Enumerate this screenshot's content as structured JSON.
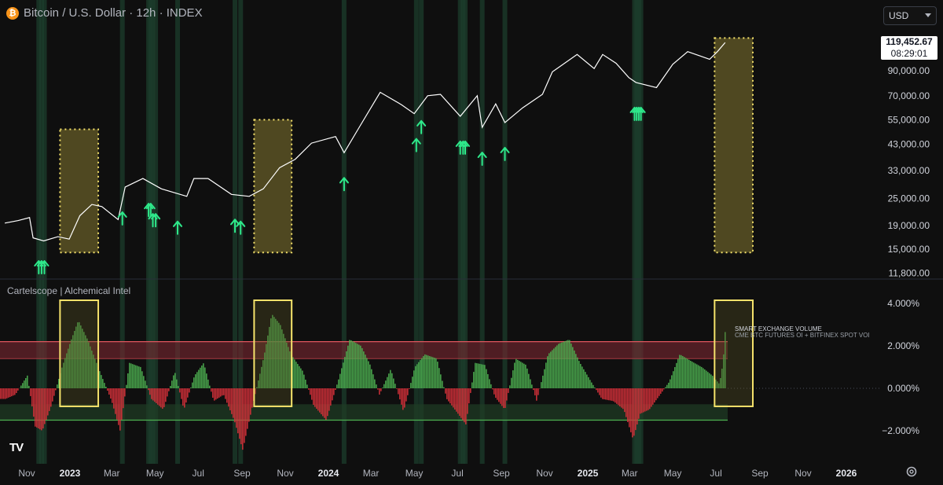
{
  "header": {
    "symbol_icon": "bitcoin-icon",
    "title": "Bitcoin / U.S. Dollar · 12h · INDEX"
  },
  "currency_button": {
    "label": "USD",
    "icon": "chevron-down-icon"
  },
  "price_badge": {
    "price": "119,452.67",
    "countdown": "08:29:01"
  },
  "indicator": {
    "title": "Cartelscope | Alchemical Intel",
    "legend_line1": "SMART EXCHANGE VOLUME",
    "legend_line2": "CME BTC FUTURES OI + BITFINEX SPOT VOI"
  },
  "colors": {
    "background": "#0f0f0f",
    "price_line": "#ffffff",
    "arrow": "#2ee88a",
    "band_green": "#1c3d2c",
    "highlight_fill": "#5a5224",
    "highlight_border": "#f5e26b",
    "osc_positive": "#4caf50",
    "osc_negative": "#d7313a",
    "zone_red": "#7a2730",
    "zone_green": "#1f3d25"
  },
  "footer": {
    "logo": "TV",
    "settings_icon": "gear-icon"
  },
  "chart_data": [
    {
      "type": "line",
      "title": "Bitcoin / U.S. Dollar · 12h · INDEX",
      "scale": "log",
      "y_ticks": [
        "90,000.00",
        "70,000.00",
        "55,000.00",
        "43,000.00",
        "33,000.00",
        "25,000.00",
        "19,000.00",
        "15,000.00",
        "11,800.00"
      ],
      "y_tick_values": [
        90000,
        70000,
        55000,
        43000,
        33000,
        25000,
        19000,
        15000,
        11800
      ],
      "x_ticks": [
        "Nov",
        "2023",
        "Mar",
        "May",
        "Jul",
        "Sep",
        "Nov",
        "2024",
        "Mar",
        "May",
        "Jul",
        "Sep",
        "Nov",
        "2025",
        "Mar",
        "May",
        "Jul",
        "Sep",
        "Nov",
        "2026"
      ],
      "x_tick_dates": [
        "2022-11-01",
        "2023-01-01",
        "2023-03-01",
        "2023-05-01",
        "2023-07-01",
        "2023-09-01",
        "2023-11-01",
        "2024-01-01",
        "2024-03-01",
        "2024-05-01",
        "2024-07-01",
        "2024-09-01",
        "2024-11-01",
        "2025-01-01",
        "2025-03-01",
        "2025-05-01",
        "2025-07-01",
        "2025-09-01",
        "2025-11-01",
        "2026-01-01"
      ],
      "series": [
        {
          "x": [
            "2022-10-01",
            "2022-10-20",
            "2022-11-05",
            "2022-11-10",
            "2022-11-25",
            "2022-12-15",
            "2022-12-31",
            "2023-01-15",
            "2023-02-01",
            "2023-02-15",
            "2023-03-10",
            "2023-03-20",
            "2023-04-14",
            "2023-05-10",
            "2023-06-15",
            "2023-06-25",
            "2023-07-15",
            "2023-08-17",
            "2023-09-11",
            "2023-10-01",
            "2023-10-24",
            "2023-11-15",
            "2023-12-08",
            "2024-01-11",
            "2024-01-23",
            "2024-02-15",
            "2024-03-14",
            "2024-04-13",
            "2024-05-01",
            "2024-05-20",
            "2024-06-07",
            "2024-07-05",
            "2024-07-29",
            "2024-08-05",
            "2024-08-24",
            "2024-09-06",
            "2024-10-01",
            "2024-10-29",
            "2024-11-12",
            "2024-12-17",
            "2025-01-10",
            "2025-01-22",
            "2025-02-10",
            "2025-02-28",
            "2025-03-10",
            "2025-04-08",
            "2025-05-01",
            "2025-05-22",
            "2025-06-22",
            "2025-07-03",
            "2025-07-14"
          ],
          "y": [
            19500,
            20000,
            20600,
            16800,
            16300,
            17000,
            16600,
            21000,
            23500,
            23000,
            20200,
            28000,
            30500,
            27500,
            25500,
            30500,
            30500,
            26000,
            25500,
            27500,
            34000,
            37000,
            43500,
            46500,
            39500,
            52000,
            72500,
            64000,
            58500,
            70000,
            71000,
            57000,
            70000,
            51000,
            64500,
            53500,
            62000,
            71000,
            89000,
            106000,
            92000,
            106000,
            97000,
            84000,
            80000,
            76000,
            96000,
            109000,
            101000,
            109000,
            119452
          ]
        }
      ],
      "signal_dates": [
        "2022-11-18",
        "2022-11-22",
        "2022-11-26",
        "2023-03-16",
        "2023-04-22",
        "2023-04-25",
        "2023-04-28",
        "2023-05-02",
        "2023-06-02",
        "2023-08-22",
        "2023-08-30",
        "2024-01-23",
        "2024-05-04",
        "2024-05-11",
        "2024-07-05",
        "2024-07-09",
        "2024-07-12",
        "2024-08-05",
        "2024-09-06",
        "2025-03-08",
        "2025-03-11",
        "2025-03-14",
        "2025-03-17"
      ],
      "accumulation_zones": [
        {
          "start": "2022-12-18",
          "end": "2023-02-10",
          "low": 14500,
          "high": 50000
        },
        {
          "start": "2023-09-18",
          "end": "2023-11-10",
          "low": 14500,
          "high": 55000
        },
        {
          "start": "2025-06-29",
          "end": "2025-08-22",
          "low": 14500,
          "high": 125000
        }
      ],
      "grid": false
    },
    {
      "type": "area",
      "title": "Cartelscope | Alchemical Intel",
      "legend": [
        "SMART EXCHANGE VOLUME",
        "CME BTC FUTURES OI + BITFINEX SPOT VOI"
      ],
      "y_ticks": [
        "4.000%",
        "2.000%",
        "0.000%",
        "−2.000%"
      ],
      "ylim": [
        -2.6,
        4.4
      ],
      "upper_band": [
        1.4,
        2.2
      ],
      "lower_band": [
        -1.5,
        -0.75
      ],
      "series": [
        {
          "name": "SMART EXCHANGE VOLUME",
          "x": [
            "2022-10-01",
            "2022-10-15",
            "2022-11-01",
            "2022-11-12",
            "2022-11-22",
            "2022-12-05",
            "2022-12-20",
            "2023-01-01",
            "2023-01-12",
            "2023-01-25",
            "2023-02-10",
            "2023-02-28",
            "2023-03-12",
            "2023-03-25",
            "2023-04-10",
            "2023-04-25",
            "2023-05-12",
            "2023-05-28",
            "2023-06-10",
            "2023-06-25",
            "2023-07-08",
            "2023-07-22",
            "2023-08-05",
            "2023-08-20",
            "2023-09-01",
            "2023-09-15",
            "2023-10-01",
            "2023-10-12",
            "2023-10-24",
            "2023-11-08",
            "2023-11-25",
            "2023-12-10",
            "2023-12-28",
            "2024-01-15",
            "2024-01-30",
            "2024-02-15",
            "2024-02-28",
            "2024-03-12",
            "2024-03-28",
            "2024-04-15",
            "2024-05-01",
            "2024-05-15",
            "2024-06-01",
            "2024-06-15",
            "2024-07-01",
            "2024-07-12",
            "2024-07-25",
            "2024-08-08",
            "2024-08-22",
            "2024-09-05",
            "2024-09-20",
            "2024-10-05",
            "2024-10-20",
            "2024-11-05",
            "2024-11-20",
            "2024-12-05",
            "2024-12-20",
            "2025-01-05",
            "2025-01-20",
            "2025-02-05",
            "2025-02-20",
            "2025-03-05",
            "2025-03-15",
            "2025-03-28",
            "2025-04-10",
            "2025-04-25",
            "2025-05-10",
            "2025-05-25",
            "2025-06-10",
            "2025-06-25",
            "2025-07-05",
            "2025-07-10",
            "2025-07-14"
          ],
          "y": [
            -0.5,
            -0.3,
            0.6,
            -1.8,
            -2.0,
            -0.8,
            1.0,
            2.2,
            3.2,
            2.3,
            0.9,
            -0.6,
            -2.0,
            1.2,
            1.0,
            -0.5,
            -1.0,
            0.8,
            -1.0,
            0.6,
            1.2,
            -0.6,
            -0.3,
            -1.5,
            -2.9,
            -0.8,
            1.5,
            3.5,
            3.0,
            1.6,
            0.8,
            -0.8,
            -1.5,
            0.5,
            2.3,
            2.0,
            1.1,
            -0.3,
            0.9,
            -1.1,
            1.0,
            1.6,
            1.4,
            -0.5,
            -1.2,
            -1.7,
            1.2,
            1.1,
            -0.4,
            -1.0,
            1.4,
            1.1,
            -0.6,
            1.6,
            2.1,
            2.3,
            1.2,
            0.3,
            -0.5,
            -0.6,
            -1.0,
            -2.4,
            -1.2,
            -1.0,
            -0.4,
            0.3,
            1.6,
            1.3,
            1.0,
            0.6,
            0.2,
            1.2,
            3.1
          ]
        }
      ],
      "grid": false
    }
  ]
}
